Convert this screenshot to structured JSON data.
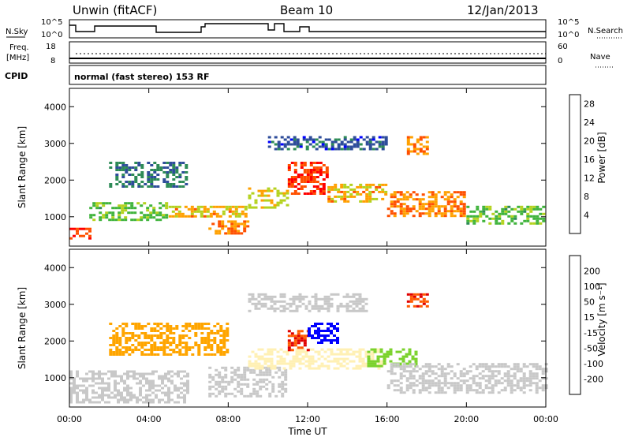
{
  "header": {
    "station": "Unwin (fitACF)",
    "beam": "Beam 10",
    "date": "12/Jan/2013"
  },
  "top_panels": {
    "nsky_label": "N.Sky",
    "nsky_ticks": [
      "10^5",
      "10^0"
    ],
    "nsearch_label": "N.Search",
    "freq_label_1": "Freq.",
    "freq_label_2": "[MHz]",
    "freq_ticks": [
      "18",
      "8"
    ],
    "nave_label": "Nave",
    "nave_ticks": [
      "60",
      "0"
    ],
    "cpid_label": "CPID",
    "cpid_text": "normal (fast stereo) 153 RF"
  },
  "colors": {
    "power": [
      "#0000ff",
      "#2e4d9a",
      "#2e8b57",
      "#40b43c",
      "#b4d21e",
      "#ffa000",
      "#ff5000",
      "#ff0000"
    ],
    "velocity": [
      "#e00000",
      "#ff5a00",
      "#ffa500",
      "#fff0b4",
      "#c8c8c8",
      "#7ad22c",
      "#2e8b57",
      "#2e4d9a",
      "#0000ff"
    ]
  },
  "chart_data": [
    {
      "type": "heatmap",
      "quantity": "power",
      "ylabel": "Slant Range [km]",
      "yticks": [
        "1000",
        "2000",
        "3000",
        "4000"
      ],
      "ylim": [
        200,
        4500
      ],
      "colorbar_label": "Power [dB]",
      "colorbar_ticks": [
        "4",
        "8",
        "12",
        "16",
        "20",
        "24",
        "28"
      ],
      "clim": [
        0,
        30
      ],
      "bands": [
        {
          "t0": 0.0,
          "t1": 1.0,
          "r0": 400,
          "r1": 700,
          "v": 26
        },
        {
          "t0": 1.0,
          "t1": 5.0,
          "r0": 900,
          "r1": 1400,
          "v": 14
        },
        {
          "t0": 2.0,
          "t1": 6.0,
          "r0": 1800,
          "r1": 2500,
          "v": 8
        },
        {
          "t0": 5.0,
          "t1": 9.0,
          "r0": 1000,
          "r1": 1300,
          "v": 20
        },
        {
          "t0": 7.0,
          "t1": 9.0,
          "r0": 500,
          "r1": 900,
          "v": 22
        },
        {
          "t0": 9.0,
          "t1": 11.0,
          "r0": 1200,
          "r1": 1800,
          "v": 18
        },
        {
          "t0": 11.0,
          "t1": 13.0,
          "r0": 1600,
          "r1": 2500,
          "v": 26
        },
        {
          "t0": 13.0,
          "t1": 16.0,
          "r0": 1400,
          "r1": 1900,
          "v": 20
        },
        {
          "t0": 10.0,
          "t1": 16.0,
          "r0": 2800,
          "r1": 3200,
          "v": 6
        },
        {
          "t0": 17.0,
          "t1": 18.0,
          "r0": 2700,
          "r1": 3200,
          "v": 22
        },
        {
          "t0": 16.0,
          "t1": 20.0,
          "r0": 1000,
          "r1": 1700,
          "v": 22
        },
        {
          "t0": 20.0,
          "t1": 24.0,
          "r0": 800,
          "r1": 1300,
          "v": 14
        }
      ]
    },
    {
      "type": "heatmap",
      "quantity": "velocity",
      "ylabel": "Slant Range [km]",
      "yticks": [
        "1000",
        "2000",
        "3000",
        "4000"
      ],
      "ylim": [
        200,
        4500
      ],
      "xlabel": "Time UT",
      "xticks": [
        "00:00",
        "04:00",
        "08:00",
        "12:00",
        "16:00",
        "20:00",
        "00:00"
      ],
      "xlim": [
        0,
        24
      ],
      "colorbar_label": "Velocity [m s⁻¹]",
      "colorbar_ticks": [
        "200",
        "100",
        "50",
        "15",
        "-15",
        "-50",
        "-100",
        "-200"
      ],
      "bands": [
        {
          "t0": 0.0,
          "t1": 6.0,
          "r0": 300,
          "r1": 1200,
          "v": 0
        },
        {
          "t0": 2.0,
          "t1": 8.0,
          "r0": 1600,
          "r1": 2500,
          "v": -60
        },
        {
          "t0": 7.0,
          "t1": 11.0,
          "r0": 500,
          "r1": 1300,
          "v": 0
        },
        {
          "t0": 9.0,
          "t1": 16.0,
          "r0": 1200,
          "r1": 1800,
          "v": -20
        },
        {
          "t0": 11.0,
          "t1": 12.0,
          "r0": 1700,
          "r1": 2300,
          "v": -200
        },
        {
          "t0": 12.0,
          "t1": 13.5,
          "r0": 1900,
          "r1": 2500,
          "v": 220
        },
        {
          "t0": 15.0,
          "t1": 17.5,
          "r0": 1300,
          "r1": 1800,
          "v": 40
        },
        {
          "t0": 17.0,
          "t1": 18.0,
          "r0": 2900,
          "r1": 3300,
          "v": -200
        },
        {
          "t0": 16.0,
          "t1": 24.0,
          "r0": 600,
          "r1": 1400,
          "v": 0
        },
        {
          "t0": 9.0,
          "t1": 15.0,
          "r0": 2800,
          "r1": 3300,
          "v": 0
        }
      ]
    }
  ]
}
